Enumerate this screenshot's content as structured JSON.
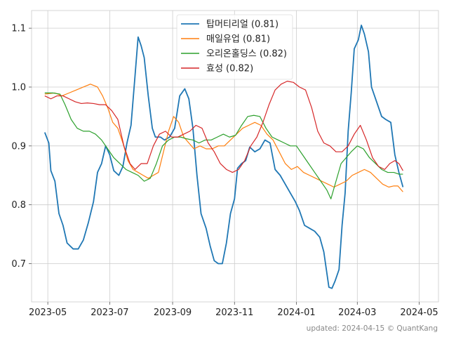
{
  "chart_data": {
    "type": "line",
    "title": "",
    "xlabel": "",
    "ylabel": "",
    "x_range": [
      "2023-04-15",
      "2024-05-20"
    ],
    "ylim": [
      0.635,
      1.13
    ],
    "x_ticks": [
      "2023-05",
      "2023-07",
      "2023-09",
      "2023-11",
      "2024-01",
      "2024-03",
      "2024-05"
    ],
    "x_tick_dates": [
      "2023-05-01",
      "2023-07-01",
      "2023-09-01",
      "2023-11-01",
      "2024-01-01",
      "2024-03-01",
      "2024-05-01"
    ],
    "y_ticks": [
      0.7,
      0.8,
      0.9,
      1.0,
      1.1
    ],
    "y_tick_labels": [
      "0.7",
      "0.8",
      "0.9",
      "1.0",
      "1.1"
    ],
    "grid": true,
    "legend_position": "top-center",
    "footer": "updated: 2024-04-15 © QuantKang",
    "series": [
      {
        "name": "탑머티리얼 (0.81)",
        "color": "#1f77b4",
        "points": [
          [
            "2023-04-28",
            0.923
          ],
          [
            "2023-05-02",
            0.905
          ],
          [
            "2023-05-04",
            0.858
          ],
          [
            "2023-05-08",
            0.84
          ],
          [
            "2023-05-12",
            0.785
          ],
          [
            "2023-05-16",
            0.765
          ],
          [
            "2023-05-20",
            0.735
          ],
          [
            "2023-05-26",
            0.725
          ],
          [
            "2023-05-31",
            0.725
          ],
          [
            "2023-06-05",
            0.74
          ],
          [
            "2023-06-10",
            0.77
          ],
          [
            "2023-06-15",
            0.805
          ],
          [
            "2023-06-19",
            0.855
          ],
          [
            "2023-06-23",
            0.87
          ],
          [
            "2023-06-27",
            0.9
          ],
          [
            "2023-07-01",
            0.885
          ],
          [
            "2023-07-05",
            0.858
          ],
          [
            "2023-07-10",
            0.85
          ],
          [
            "2023-07-14",
            0.865
          ],
          [
            "2023-07-18",
            0.905
          ],
          [
            "2023-07-22",
            0.935
          ],
          [
            "2023-07-26",
            1.02
          ],
          [
            "2023-07-29",
            1.085
          ],
          [
            "2023-08-01",
            1.07
          ],
          [
            "2023-08-04",
            1.05
          ],
          [
            "2023-08-08",
            0.985
          ],
          [
            "2023-08-12",
            0.93
          ],
          [
            "2023-08-15",
            0.915
          ],
          [
            "2023-08-20",
            0.915
          ],
          [
            "2023-08-24",
            0.91
          ],
          [
            "2023-08-29",
            0.915
          ],
          [
            "2023-09-03",
            0.93
          ],
          [
            "2023-09-08",
            0.985
          ],
          [
            "2023-09-13",
            0.997
          ],
          [
            "2023-09-17",
            0.98
          ],
          [
            "2023-09-21",
            0.93
          ],
          [
            "2023-09-25",
            0.85
          ],
          [
            "2023-09-29",
            0.785
          ],
          [
            "2023-10-04",
            0.76
          ],
          [
            "2023-10-08",
            0.73
          ],
          [
            "2023-10-12",
            0.705
          ],
          [
            "2023-10-16",
            0.7
          ],
          [
            "2023-10-20",
            0.7
          ],
          [
            "2023-10-24",
            0.735
          ],
          [
            "2023-10-28",
            0.785
          ],
          [
            "2023-11-01",
            0.81
          ],
          [
            "2023-11-04",
            0.862
          ],
          [
            "2023-11-08",
            0.87
          ],
          [
            "2023-11-12",
            0.875
          ],
          [
            "2023-11-16",
            0.898
          ],
          [
            "2023-11-21",
            0.89
          ],
          [
            "2023-11-26",
            0.895
          ],
          [
            "2023-12-01",
            0.91
          ],
          [
            "2023-12-06",
            0.905
          ],
          [
            "2023-12-11",
            0.86
          ],
          [
            "2023-12-16",
            0.85
          ],
          [
            "2023-12-21",
            0.835
          ],
          [
            "2023-12-26",
            0.82
          ],
          [
            "2023-12-31",
            0.805
          ],
          [
            "2024-01-04",
            0.79
          ],
          [
            "2024-01-09",
            0.765
          ],
          [
            "2024-01-14",
            0.76
          ],
          [
            "2024-01-19",
            0.755
          ],
          [
            "2024-01-24",
            0.745
          ],
          [
            "2024-01-28",
            0.72
          ],
          [
            "2024-02-02",
            0.66
          ],
          [
            "2024-02-05",
            0.658
          ],
          [
            "2024-02-08",
            0.67
          ],
          [
            "2024-02-12",
            0.69
          ],
          [
            "2024-02-15",
            0.765
          ],
          [
            "2024-02-18",
            0.82
          ],
          [
            "2024-02-21",
            0.925
          ],
          [
            "2024-02-24",
            0.99
          ],
          [
            "2024-02-27",
            1.065
          ],
          [
            "2024-03-02",
            1.08
          ],
          [
            "2024-03-05",
            1.105
          ],
          [
            "2024-03-08",
            1.09
          ],
          [
            "2024-03-12",
            1.06
          ],
          [
            "2024-03-15",
            1.0
          ],
          [
            "2024-03-20",
            0.975
          ],
          [
            "2024-03-25",
            0.95
          ],
          [
            "2024-03-29",
            0.945
          ],
          [
            "2024-04-03",
            0.94
          ],
          [
            "2024-04-07",
            0.885
          ],
          [
            "2024-04-11",
            0.855
          ],
          [
            "2024-04-15",
            0.83
          ]
        ]
      },
      {
        "name": "매일유업 (0.81)",
        "color": "#ff7f0e",
        "points": [
          [
            "2023-04-28",
            0.988
          ],
          [
            "2023-05-08",
            0.99
          ],
          [
            "2023-05-15",
            0.985
          ],
          [
            "2023-05-22",
            0.99
          ],
          [
            "2023-05-29",
            0.995
          ],
          [
            "2023-06-05",
            1.0
          ],
          [
            "2023-06-12",
            1.005
          ],
          [
            "2023-06-19",
            1.0
          ],
          [
            "2023-06-24",
            0.985
          ],
          [
            "2023-06-29",
            0.965
          ],
          [
            "2023-07-04",
            0.94
          ],
          [
            "2023-07-09",
            0.93
          ],
          [
            "2023-07-14",
            0.905
          ],
          [
            "2023-07-19",
            0.875
          ],
          [
            "2023-07-24",
            0.86
          ],
          [
            "2023-07-29",
            0.855
          ],
          [
            "2023-08-03",
            0.85
          ],
          [
            "2023-08-08",
            0.845
          ],
          [
            "2023-08-13",
            0.85
          ],
          [
            "2023-08-18",
            0.855
          ],
          [
            "2023-08-23",
            0.89
          ],
          [
            "2023-08-28",
            0.925
          ],
          [
            "2023-09-02",
            0.95
          ],
          [
            "2023-09-07",
            0.94
          ],
          [
            "2023-09-12",
            0.915
          ],
          [
            "2023-09-17",
            0.905
          ],
          [
            "2023-09-22",
            0.895
          ],
          [
            "2023-09-28",
            0.9
          ],
          [
            "2023-10-04",
            0.895
          ],
          [
            "2023-10-10",
            0.895
          ],
          [
            "2023-10-16",
            0.9
          ],
          [
            "2023-10-22",
            0.9
          ],
          [
            "2023-10-28",
            0.91
          ],
          [
            "2023-11-03",
            0.92
          ],
          [
            "2023-11-09",
            0.93
          ],
          [
            "2023-11-15",
            0.935
          ],
          [
            "2023-11-21",
            0.94
          ],
          [
            "2023-11-27",
            0.935
          ],
          [
            "2023-12-03",
            0.92
          ],
          [
            "2023-12-09",
            0.91
          ],
          [
            "2023-12-15",
            0.89
          ],
          [
            "2023-12-21",
            0.87
          ],
          [
            "2023-12-27",
            0.86
          ],
          [
            "2024-01-02",
            0.865
          ],
          [
            "2024-01-08",
            0.855
          ],
          [
            "2024-01-14",
            0.85
          ],
          [
            "2024-01-20",
            0.845
          ],
          [
            "2024-01-26",
            0.84
          ],
          [
            "2024-02-01",
            0.835
          ],
          [
            "2024-02-07",
            0.83
          ],
          [
            "2024-02-13",
            0.835
          ],
          [
            "2024-02-19",
            0.84
          ],
          [
            "2024-02-25",
            0.85
          ],
          [
            "2024-03-02",
            0.855
          ],
          [
            "2024-03-08",
            0.86
          ],
          [
            "2024-03-14",
            0.855
          ],
          [
            "2024-03-20",
            0.845
          ],
          [
            "2024-03-26",
            0.835
          ],
          [
            "2024-04-01",
            0.83
          ],
          [
            "2024-04-06",
            0.832
          ],
          [
            "2024-04-10",
            0.832
          ],
          [
            "2024-04-15",
            0.822
          ]
        ]
      },
      {
        "name": "오리온홀딩스 (0.82)",
        "color": "#2ca02c",
        "points": [
          [
            "2023-04-28",
            0.99
          ],
          [
            "2023-05-06",
            0.99
          ],
          [
            "2023-05-13",
            0.988
          ],
          [
            "2023-05-18",
            0.97
          ],
          [
            "2023-05-24",
            0.945
          ],
          [
            "2023-05-30",
            0.93
          ],
          [
            "2023-06-05",
            0.925
          ],
          [
            "2023-06-11",
            0.925
          ],
          [
            "2023-06-17",
            0.92
          ],
          [
            "2023-06-23",
            0.91
          ],
          [
            "2023-06-29",
            0.895
          ],
          [
            "2023-07-05",
            0.88
          ],
          [
            "2023-07-11",
            0.87
          ],
          [
            "2023-07-17",
            0.86
          ],
          [
            "2023-07-23",
            0.855
          ],
          [
            "2023-07-29",
            0.85
          ],
          [
            "2023-08-04",
            0.84
          ],
          [
            "2023-08-10",
            0.845
          ],
          [
            "2023-08-16",
            0.87
          ],
          [
            "2023-08-22",
            0.9
          ],
          [
            "2023-08-28",
            0.91
          ],
          [
            "2023-09-03",
            0.915
          ],
          [
            "2023-09-09",
            0.915
          ],
          [
            "2023-09-15",
            0.912
          ],
          [
            "2023-09-21",
            0.91
          ],
          [
            "2023-09-27",
            0.905
          ],
          [
            "2023-10-03",
            0.91
          ],
          [
            "2023-10-09",
            0.91
          ],
          [
            "2023-10-15",
            0.915
          ],
          [
            "2023-10-21",
            0.92
          ],
          [
            "2023-10-27",
            0.915
          ],
          [
            "2023-11-02",
            0.918
          ],
          [
            "2023-11-08",
            0.935
          ],
          [
            "2023-11-14",
            0.95
          ],
          [
            "2023-11-20",
            0.952
          ],
          [
            "2023-11-26",
            0.95
          ],
          [
            "2023-12-02",
            0.93
          ],
          [
            "2023-12-08",
            0.915
          ],
          [
            "2023-12-14",
            0.91
          ],
          [
            "2023-12-20",
            0.905
          ],
          [
            "2023-12-26",
            0.9
          ],
          [
            "2024-01-01",
            0.9
          ],
          [
            "2024-01-07",
            0.885
          ],
          [
            "2024-01-13",
            0.87
          ],
          [
            "2024-01-19",
            0.855
          ],
          [
            "2024-01-25",
            0.84
          ],
          [
            "2024-01-31",
            0.825
          ],
          [
            "2024-02-04",
            0.81
          ],
          [
            "2024-02-09",
            0.84
          ],
          [
            "2024-02-14",
            0.87
          ],
          [
            "2024-02-19",
            0.88
          ],
          [
            "2024-02-24",
            0.89
          ],
          [
            "2024-03-01",
            0.9
          ],
          [
            "2024-03-07",
            0.895
          ],
          [
            "2024-03-13",
            0.88
          ],
          [
            "2024-03-19",
            0.87
          ],
          [
            "2024-03-25",
            0.86
          ],
          [
            "2024-03-31",
            0.855
          ],
          [
            "2024-04-06",
            0.855
          ],
          [
            "2024-04-11",
            0.852
          ],
          [
            "2024-04-15",
            0.852
          ]
        ]
      },
      {
        "name": "효성 (0.82)",
        "color": "#d62728",
        "points": [
          [
            "2023-04-28",
            0.985
          ],
          [
            "2023-05-04",
            0.98
          ],
          [
            "2023-05-10",
            0.985
          ],
          [
            "2023-05-16",
            0.985
          ],
          [
            "2023-05-22",
            0.98
          ],
          [
            "2023-05-28",
            0.975
          ],
          [
            "2023-06-03",
            0.972
          ],
          [
            "2023-06-09",
            0.973
          ],
          [
            "2023-06-15",
            0.972
          ],
          [
            "2023-06-21",
            0.97
          ],
          [
            "2023-06-27",
            0.97
          ],
          [
            "2023-07-03",
            0.96
          ],
          [
            "2023-07-09",
            0.945
          ],
          [
            "2023-07-15",
            0.9
          ],
          [
            "2023-07-21",
            0.87
          ],
          [
            "2023-07-26",
            0.86
          ],
          [
            "2023-08-01",
            0.87
          ],
          [
            "2023-08-07",
            0.87
          ],
          [
            "2023-08-13",
            0.9
          ],
          [
            "2023-08-19",
            0.92
          ],
          [
            "2023-08-25",
            0.925
          ],
          [
            "2023-08-31",
            0.915
          ],
          [
            "2023-09-06",
            0.915
          ],
          [
            "2023-09-12",
            0.92
          ],
          [
            "2023-09-18",
            0.925
          ],
          [
            "2023-09-24",
            0.935
          ],
          [
            "2023-09-30",
            0.93
          ],
          [
            "2023-10-06",
            0.905
          ],
          [
            "2023-10-12",
            0.89
          ],
          [
            "2023-10-18",
            0.87
          ],
          [
            "2023-10-24",
            0.86
          ],
          [
            "2023-10-30",
            0.855
          ],
          [
            "2023-11-05",
            0.86
          ],
          [
            "2023-11-11",
            0.875
          ],
          [
            "2023-11-17",
            0.9
          ],
          [
            "2023-11-23",
            0.915
          ],
          [
            "2023-11-29",
            0.94
          ],
          [
            "2023-12-05",
            0.97
          ],
          [
            "2023-12-11",
            0.995
          ],
          [
            "2023-12-17",
            1.005
          ],
          [
            "2023-12-23",
            1.01
          ],
          [
            "2023-12-29",
            1.008
          ],
          [
            "2024-01-04",
            1.0
          ],
          [
            "2024-01-10",
            0.995
          ],
          [
            "2024-01-16",
            0.965
          ],
          [
            "2024-01-22",
            0.925
          ],
          [
            "2024-01-28",
            0.905
          ],
          [
            "2024-02-03",
            0.9
          ],
          [
            "2024-02-09",
            0.89
          ],
          [
            "2024-02-15",
            0.89
          ],
          [
            "2024-02-21",
            0.9
          ],
          [
            "2024-02-27",
            0.92
          ],
          [
            "2024-03-04",
            0.935
          ],
          [
            "2024-03-10",
            0.91
          ],
          [
            "2024-03-16",
            0.88
          ],
          [
            "2024-03-22",
            0.865
          ],
          [
            "2024-03-28",
            0.86
          ],
          [
            "2024-04-02",
            0.87
          ],
          [
            "2024-04-07",
            0.875
          ],
          [
            "2024-04-11",
            0.87
          ],
          [
            "2024-04-15",
            0.858
          ]
        ]
      }
    ]
  }
}
